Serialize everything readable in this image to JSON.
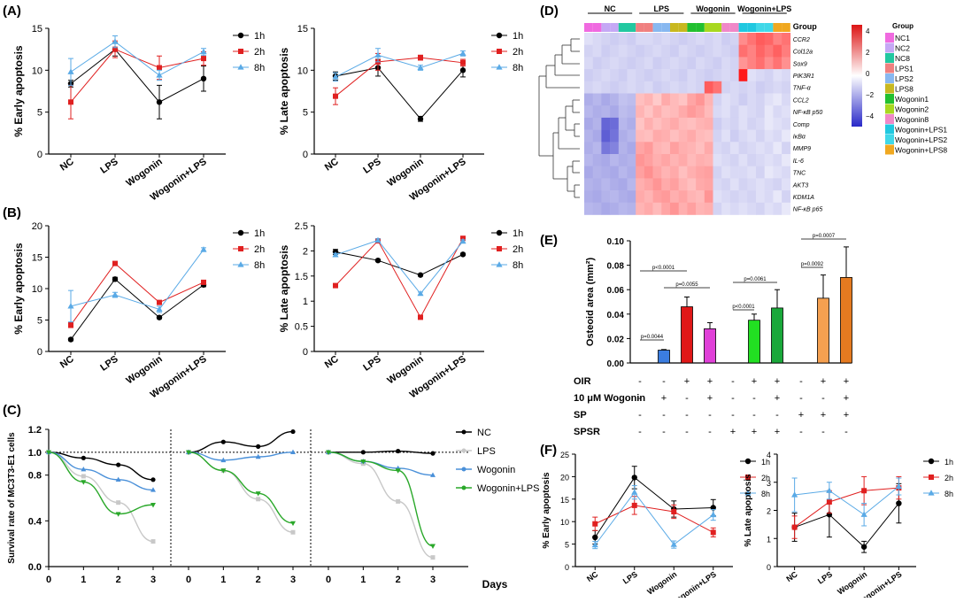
{
  "panel_labels": {
    "A": "(A)",
    "B": "(B)",
    "C": "(C)",
    "D": "(D)",
    "E": "(E)",
    "F": "(F)"
  },
  "colors": {
    "1h": "#000000",
    "2h": "#e02020",
    "8h": "#5aaae6",
    "NC": "#000000",
    "LPS": "#c8c8c8",
    "Wogonin": "#4a90d9",
    "Wogonin+LPS": "#2aa82a"
  },
  "chart_data": [
    {
      "id": "A1",
      "type": "line",
      "categories": [
        "NC",
        "LPS",
        "Wogonin",
        "Wogonin+LPS"
      ],
      "ylabel": "% Early apoptosis",
      "ylim": [
        0,
        15
      ],
      "yticks": [
        0,
        5,
        10,
        15
      ],
      "series": [
        {
          "name": "1h",
          "values": [
            8.4,
            12.5,
            6.2,
            9.0
          ],
          "err": [
            0.4,
            0.8,
            2.0,
            1.5
          ]
        },
        {
          "name": "2h",
          "values": [
            6.2,
            12.5,
            10.3,
            11.4
          ],
          "err": [
            2.0,
            1.0,
            1.4,
            0.8
          ]
        },
        {
          "name": "8h",
          "values": [
            9.8,
            13.4,
            9.4,
            12.2
          ],
          "err": [
            1.6,
            0.7,
            0.6,
            0.4
          ]
        }
      ]
    },
    {
      "id": "A2",
      "type": "line",
      "categories": [
        "NC",
        "LPS",
        "Wogonin",
        "Wogonin+LPS"
      ],
      "ylabel": "% Late apoptosis",
      "ylim": [
        0,
        15
      ],
      "yticks": [
        0,
        5,
        10,
        15
      ],
      "series": [
        {
          "name": "1h",
          "values": [
            9.3,
            10.3,
            4.2,
            10.0
          ],
          "err": [
            0.5,
            1.0,
            0.3,
            0.8
          ]
        },
        {
          "name": "2h",
          "values": [
            6.9,
            11.0,
            11.5,
            10.9
          ],
          "err": [
            1.0,
            1.0,
            0.3,
            0.4
          ]
        },
        {
          "name": "8h",
          "values": [
            9.2,
            11.8,
            10.3,
            12.0
          ],
          "err": [
            0.5,
            0.8,
            0.3,
            0.3
          ]
        }
      ]
    },
    {
      "id": "B1",
      "type": "line",
      "categories": [
        "NC",
        "LPS",
        "Wogonin",
        "Wogonin+LPS"
      ],
      "ylabel": "% Early apoptosis",
      "ylim": [
        0,
        20
      ],
      "yticks": [
        0,
        5,
        10,
        15,
        20
      ],
      "series": [
        {
          "name": "1h",
          "values": [
            1.9,
            11.5,
            5.4,
            10.6
          ],
          "err": [
            0.2,
            0.3,
            0.2,
            0.3
          ]
        },
        {
          "name": "2h",
          "values": [
            4.2,
            14.0,
            7.8,
            11.0
          ],
          "err": [
            0.4,
            0.3,
            0.3,
            0.3
          ]
        },
        {
          "name": "8h",
          "values": [
            7.2,
            9.0,
            6.7,
            16.2
          ],
          "err": [
            2.5,
            0.4,
            0.5,
            0.3
          ]
        }
      ]
    },
    {
      "id": "B2",
      "type": "line",
      "categories": [
        "NC",
        "LPS",
        "Wogonin",
        "Wogonin+LPS"
      ],
      "ylabel": "% Late apoptosis",
      "ylim": [
        0,
        2.5
      ],
      "yticks": [
        0.0,
        0.5,
        1.0,
        1.5,
        2.0,
        2.5
      ],
      "series": [
        {
          "name": "1h",
          "values": [
            1.98,
            1.81,
            1.52,
            1.93
          ],
          "err": [
            0.05,
            0.02,
            0.02,
            0.02
          ]
        },
        {
          "name": "2h",
          "values": [
            1.31,
            2.2,
            0.68,
            2.25
          ],
          "err": [
            0.03,
            0.04,
            0.03,
            0.03
          ]
        },
        {
          "name": "8h",
          "values": [
            1.92,
            2.21,
            1.15,
            2.19
          ],
          "err": [
            0.03,
            0.03,
            0.03,
            0.03
          ]
        }
      ]
    },
    {
      "id": "C",
      "type": "line",
      "ylabel": "Survival rate of MC3T3-E1 cells",
      "xlabel": "Days",
      "ylim": [
        0,
        1.2
      ],
      "yticks": [
        0.0,
        0.4,
        0.8,
        1.0,
        1.2
      ],
      "x": [
        0,
        1,
        2,
        3
      ],
      "segments": [
        {
          "series": [
            {
              "name": "NC",
              "values": [
                1.0,
                0.95,
                0.89,
                0.76
              ]
            },
            {
              "name": "LPS",
              "values": [
                1.0,
                0.79,
                0.56,
                0.22
              ]
            },
            {
              "name": "Wogonin",
              "values": [
                1.0,
                0.85,
                0.76,
                0.67
              ]
            },
            {
              "name": "Wogonin+LPS",
              "values": [
                1.0,
                0.74,
                0.46,
                0.54
              ]
            }
          ]
        },
        {
          "series": [
            {
              "name": "NC",
              "values": [
                1.0,
                1.09,
                1.05,
                1.18
              ]
            },
            {
              "name": "LPS",
              "values": [
                1.0,
                0.84,
                0.59,
                0.3
              ]
            },
            {
              "name": "Wogonin",
              "values": [
                1.0,
                0.93,
                0.96,
                1.0
              ]
            },
            {
              "name": "Wogonin+LPS",
              "values": [
                1.0,
                0.84,
                0.64,
                0.38
              ]
            }
          ]
        },
        {
          "series": [
            {
              "name": "NC",
              "values": [
                1.0,
                1.0,
                1.01,
                0.99
              ]
            },
            {
              "name": "LPS",
              "values": [
                1.0,
                0.9,
                0.57,
                0.08
              ]
            },
            {
              "name": "Wogonin",
              "values": [
                1.0,
                0.92,
                0.86,
                0.8
              ]
            },
            {
              "name": "Wogonin+LPS",
              "values": [
                1.0,
                0.92,
                0.84,
                0.18
              ]
            }
          ]
        }
      ],
      "legend": [
        "NC",
        "LPS",
        "Wogonin",
        "Wogonin+LPS"
      ]
    },
    {
      "id": "E",
      "type": "bar",
      "ylabel": "Osteoid area (mm²)",
      "ylim": [
        0,
        0.1
      ],
      "yticks": [
        "0.00",
        "0.02",
        "0.04",
        "0.06",
        "0.08",
        "0.10"
      ],
      "bars": [
        {
          "value": 0.0,
          "err": 0,
          "color": "#ffffff"
        },
        {
          "value": 0.0105,
          "err": 0.0005,
          "color": "#3b7de0"
        },
        {
          "value": 0.046,
          "err": 0.008,
          "color": "#e01818"
        },
        {
          "value": 0.028,
          "err": 0.005,
          "color": "#e040d8"
        },
        {
          "value": 0.0,
          "err": 0,
          "color": "#ffffff"
        },
        {
          "value": 0.035,
          "err": 0.005,
          "color": "#22e022"
        },
        {
          "value": 0.045,
          "err": 0.015,
          "color": "#1aa83a"
        },
        {
          "value": 0.0,
          "err": 0,
          "color": "#ffffff"
        },
        {
          "value": 0.053,
          "err": 0.019,
          "color": "#f5a050"
        },
        {
          "value": 0.07,
          "err": 0.025,
          "color": "#e57a20"
        }
      ],
      "pvalues": [
        "p=0.0044",
        "p<0.0001",
        "p=0.0055",
        "p<0.0001",
        "p=0.0061",
        "p=0.0092",
        "p=0.0007"
      ],
      "conditions": [
        {
          "label": "OIR",
          "signs": [
            "-",
            "-",
            "+",
            "+",
            "-",
            "+",
            "+",
            "-",
            "+",
            "+"
          ]
        },
        {
          "label": "10 μM Wogonin",
          "signs": [
            "-",
            "+",
            "-",
            "+",
            "-",
            "-",
            "+",
            "-",
            "-",
            "+"
          ]
        },
        {
          "label": "SP",
          "signs": [
            "-",
            "-",
            "-",
            "-",
            "-",
            "-",
            "-",
            "+",
            "+",
            "+"
          ]
        },
        {
          "label": "SPSR",
          "signs": [
            "-",
            "-",
            "-",
            "-",
            "+",
            "+",
            "+",
            "-",
            "-",
            "-"
          ]
        }
      ]
    },
    {
      "id": "F1",
      "type": "line",
      "categories": [
        "NC",
        "LPS",
        "Wogonin",
        "Wogonin+LPS"
      ],
      "ylabel": "% Early apoptosis",
      "ylim": [
        0,
        25
      ],
      "yticks": [
        0,
        5,
        10,
        15,
        20,
        25
      ],
      "series": [
        {
          "name": "1h",
          "values": [
            6.5,
            19.8,
            12.8,
            13.1
          ],
          "err": [
            1.5,
            2.5,
            1.8,
            1.8
          ]
        },
        {
          "name": "2h",
          "values": [
            9.5,
            13.6,
            12.2,
            7.6
          ],
          "err": [
            1.5,
            2.0,
            1.5,
            1.0
          ]
        },
        {
          "name": "8h",
          "values": [
            4.8,
            16.5,
            4.9,
            11.5
          ],
          "err": [
            0.8,
            1.5,
            0.8,
            1.2
          ]
        }
      ]
    },
    {
      "id": "F2",
      "type": "line",
      "categories": [
        "NC",
        "LPS",
        "Wogonin",
        "Wogonin+LPS"
      ],
      "ylabel": "% Late apoptosis",
      "ylim": [
        0,
        4
      ],
      "yticks": [
        0,
        1,
        2,
        3,
        4
      ],
      "series": [
        {
          "name": "1h",
          "values": [
            1.4,
            1.85,
            0.7,
            2.25
          ],
          "err": [
            0.5,
            0.8,
            0.2,
            0.7
          ]
        },
        {
          "name": "2h",
          "values": [
            1.4,
            2.3,
            2.7,
            2.8
          ],
          "err": [
            0.4,
            0.4,
            0.5,
            0.4
          ]
        },
        {
          "name": "8h",
          "values": [
            2.55,
            2.7,
            1.85,
            2.85
          ],
          "err": [
            0.6,
            0.3,
            0.4,
            0.3
          ]
        }
      ]
    }
  ],
  "heatmap": {
    "col_groups": [
      "NC",
      "LPS",
      "Wogonin",
      "Wogonin+LPS"
    ],
    "group_header": "Group",
    "rows": [
      "CCR2",
      "Col12a",
      "Sox9",
      "PIK3R1",
      "TNF-α",
      "CCL2",
      "NF-κB p50",
      "Comp",
      "IκBα",
      "MMP9",
      "IL-6",
      "TNC",
      "AKT3",
      "KDM1A",
      "NF-κB p65"
    ],
    "samples": [
      "NC1",
      "NC2",
      "NC8",
      "LPS1",
      "LPS2",
      "LPS8",
      "Wogonin1",
      "Wogonin2",
      "Wogonin8",
      "Wogonin+LPS1",
      "Wogonin+LPS2",
      "Wogonin+LPS8"
    ],
    "sample_colors": [
      "#f06ae0",
      "#c5a8f5",
      "#22c8a0",
      "#f08080",
      "#88b8f0",
      "#c8b820",
      "#22c030",
      "#a8d820",
      "#f088c8",
      "#20c8e0",
      "#40d8e8",
      "#f0a820"
    ],
    "scale_ticks": [
      "4",
      "2",
      "0",
      "−2",
      "−4"
    ],
    "values": [
      [
        -0.3,
        -0.4,
        -0.5,
        -0.6,
        -0.5,
        -0.6,
        -0.4,
        -0.4,
        -0.5,
        -0.4,
        -0.5,
        -0.6,
        -0.5,
        -0.4,
        -0.5,
        -0.4,
        -0.6,
        -0.5,
        2.0,
        2.5,
        3.0,
        2.8,
        2.2,
        2.5
      ],
      [
        -0.5,
        -0.4,
        -0.6,
        -0.5,
        -0.4,
        -0.5,
        -0.6,
        -0.5,
        -0.4,
        -0.5,
        -0.6,
        -0.4,
        -0.5,
        -0.6,
        -0.5,
        -0.4,
        -0.5,
        -0.6,
        2.6,
        2.2,
        2.8,
        2.4,
        2.9,
        2.3
      ],
      [
        -0.4,
        -0.6,
        -0.5,
        -0.4,
        -0.5,
        -0.6,
        -0.5,
        -0.4,
        -0.6,
        -0.5,
        -0.4,
        -0.5,
        -0.6,
        -0.4,
        -0.5,
        -0.6,
        -0.4,
        -0.5,
        1.8,
        2.2,
        2.6,
        2.0,
        2.5,
        1.9
      ],
      [
        -0.6,
        -0.5,
        -0.4,
        -0.5,
        -0.6,
        -0.4,
        -0.5,
        -0.6,
        -0.5,
        -0.4,
        -0.5,
        -0.6,
        -0.4,
        -0.5,
        -0.6,
        -0.5,
        -0.4,
        -0.5,
        4.5,
        -0.3,
        -0.4,
        -0.5,
        -0.3,
        -0.4
      ],
      [
        -0.5,
        -0.4,
        -0.5,
        -0.6,
        -0.5,
        -0.4,
        -0.5,
        -0.4,
        -0.6,
        -0.5,
        -0.4,
        -0.5,
        -0.4,
        -0.5,
        3.0,
        2.5,
        -0.5,
        -0.4,
        -0.5,
        -0.4,
        -0.6,
        -0.5,
        -0.4,
        -0.5
      ],
      [
        -1.2,
        -1.0,
        -1.3,
        -1.1,
        -0.8,
        -0.9,
        1.0,
        1.2,
        0.8,
        1.4,
        1.1,
        0.9,
        1.5,
        1.8,
        1.2,
        -0.5,
        -0.3,
        -0.4,
        -0.6,
        -0.4,
        -0.5,
        -0.3,
        -0.2,
        -0.4
      ],
      [
        -1.0,
        -1.2,
        -1.1,
        -1.3,
        -0.9,
        -1.0,
        1.2,
        0.9,
        1.3,
        1.0,
        1.1,
        1.4,
        1.7,
        1.5,
        1.1,
        -0.4,
        -0.3,
        -0.5,
        -0.3,
        -0.4,
        -0.5,
        -0.2,
        -0.4,
        -0.3
      ],
      [
        -1.3,
        -1.1,
        -3.0,
        -2.8,
        -1.0,
        -1.2,
        0.9,
        1.3,
        1.0,
        1.2,
        1.4,
        1.1,
        1.0,
        1.2,
        1.3,
        -0.6,
        -0.4,
        -0.5,
        -0.3,
        -0.5,
        -0.4,
        -0.2,
        -0.3,
        -0.4
      ],
      [
        -1.1,
        -1.3,
        -3.2,
        -2.6,
        -1.2,
        -1.0,
        1.1,
        1.0,
        1.4,
        1.3,
        1.0,
        1.2,
        1.4,
        1.1,
        1.0,
        -0.5,
        -0.3,
        -0.6,
        -0.4,
        -0.3,
        -0.5,
        -0.3,
        -0.4,
        -0.2
      ],
      [
        -1.2,
        -1.0,
        -2.5,
        -2.2,
        -1.1,
        -1.3,
        1.5,
        1.7,
        1.2,
        1.1,
        1.6,
        1.3,
        1.2,
        1.0,
        1.4,
        -0.4,
        -0.5,
        -0.3,
        -0.5,
        -0.4,
        -0.3,
        -0.4,
        -0.2,
        -0.5
      ],
      [
        -1.0,
        -1.2,
        -1.3,
        -1.0,
        -1.2,
        -1.1,
        1.8,
        1.6,
        1.3,
        1.5,
        1.2,
        1.4,
        1.1,
        1.3,
        1.2,
        -0.3,
        -0.4,
        -0.5,
        -0.3,
        -0.5,
        -0.4,
        -0.3,
        -0.4,
        -0.2
      ],
      [
        -1.3,
        -1.1,
        -1.2,
        -1.3,
        -1.0,
        -1.2,
        1.6,
        1.9,
        1.5,
        1.2,
        1.4,
        1.0,
        1.3,
        1.5,
        1.6,
        -0.5,
        -0.3,
        -0.4,
        -0.4,
        -0.3,
        -0.5,
        -0.2,
        -0.3,
        -0.4
      ],
      [
        -1.1,
        -1.2,
        -1.0,
        -1.2,
        -1.3,
        -1.0,
        1.3,
        1.5,
        1.8,
        1.4,
        1.6,
        1.2,
        1.0,
        1.4,
        1.5,
        -0.4,
        -0.5,
        -0.3,
        -0.5,
        -0.4,
        -0.3,
        -0.4,
        -0.5,
        -0.3
      ],
      [
        -1.2,
        -1.3,
        -1.1,
        -1.0,
        -1.2,
        -1.3,
        1.4,
        1.2,
        1.6,
        1.7,
        1.3,
        1.5,
        1.2,
        1.1,
        1.8,
        -0.3,
        -0.4,
        -0.5,
        -0.4,
        -0.5,
        -0.3,
        -0.4,
        -0.2,
        -0.5
      ],
      [
        -1.0,
        -1.1,
        -1.3,
        -1.2,
        -1.0,
        -1.1,
        1.2,
        1.4,
        1.1,
        1.5,
        1.8,
        1.3,
        1.6,
        1.2,
        1.3,
        -0.5,
        -0.3,
        -0.4,
        -0.3,
        -0.4,
        -0.5,
        -0.3,
        -0.4,
        -0.2
      ]
    ]
  }
}
